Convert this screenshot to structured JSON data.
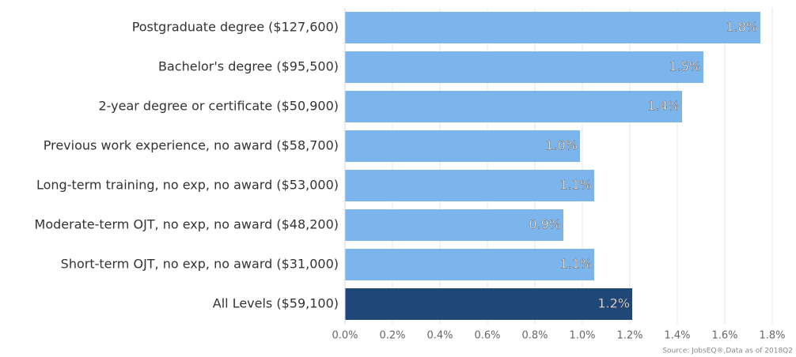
{
  "chart_data": {
    "type": "hbar",
    "categories": [
      "Postgraduate degree ($127,600)",
      "Bachelor's degree ($95,500)",
      "2-year degree or certificate ($50,900)",
      "Previous work experience, no award ($58,700)",
      "Long-term training, no exp, no award ($53,000)",
      "Moderate-term OJT, no exp, no award ($48,200)",
      "Short-term OJT, no exp, no award ($31,000)",
      "All Levels ($59,100)"
    ],
    "values": [
      1.75,
      1.51,
      1.42,
      0.99,
      1.05,
      0.92,
      1.05,
      1.21
    ],
    "value_labels": [
      "1.8%",
      "1.5%",
      "1.4%",
      "1.0%",
      "1.1%",
      "0.9%",
      "1.1%",
      "1.2%"
    ],
    "colors": [
      "#7cb5ec",
      "#7cb5ec",
      "#7cb5ec",
      "#7cb5ec",
      "#7cb5ec",
      "#7cb5ec",
      "#7cb5ec",
      "#1f4778"
    ],
    "xlim": [
      0,
      1.9
    ],
    "xticks": [
      {
        "value": 0,
        "label": "0.0%"
      },
      {
        "value": 0.2,
        "label": "0.2%"
      },
      {
        "value": 0.4,
        "label": "0.4%"
      },
      {
        "value": 0.6,
        "label": "0.6%"
      },
      {
        "value": 0.8,
        "label": "0.8%"
      },
      {
        "value": 1.0,
        "label": "1.0%"
      },
      {
        "value": 1.2,
        "label": "1.2%"
      },
      {
        "value": 1.4,
        "label": "1.4%"
      },
      {
        "value": 1.6,
        "label": "1.6%"
      },
      {
        "value": 1.8,
        "label": "1.8%"
      }
    ],
    "grid": true,
    "source": "Source: JobsEQ®,Data as of 2018Q2"
  }
}
